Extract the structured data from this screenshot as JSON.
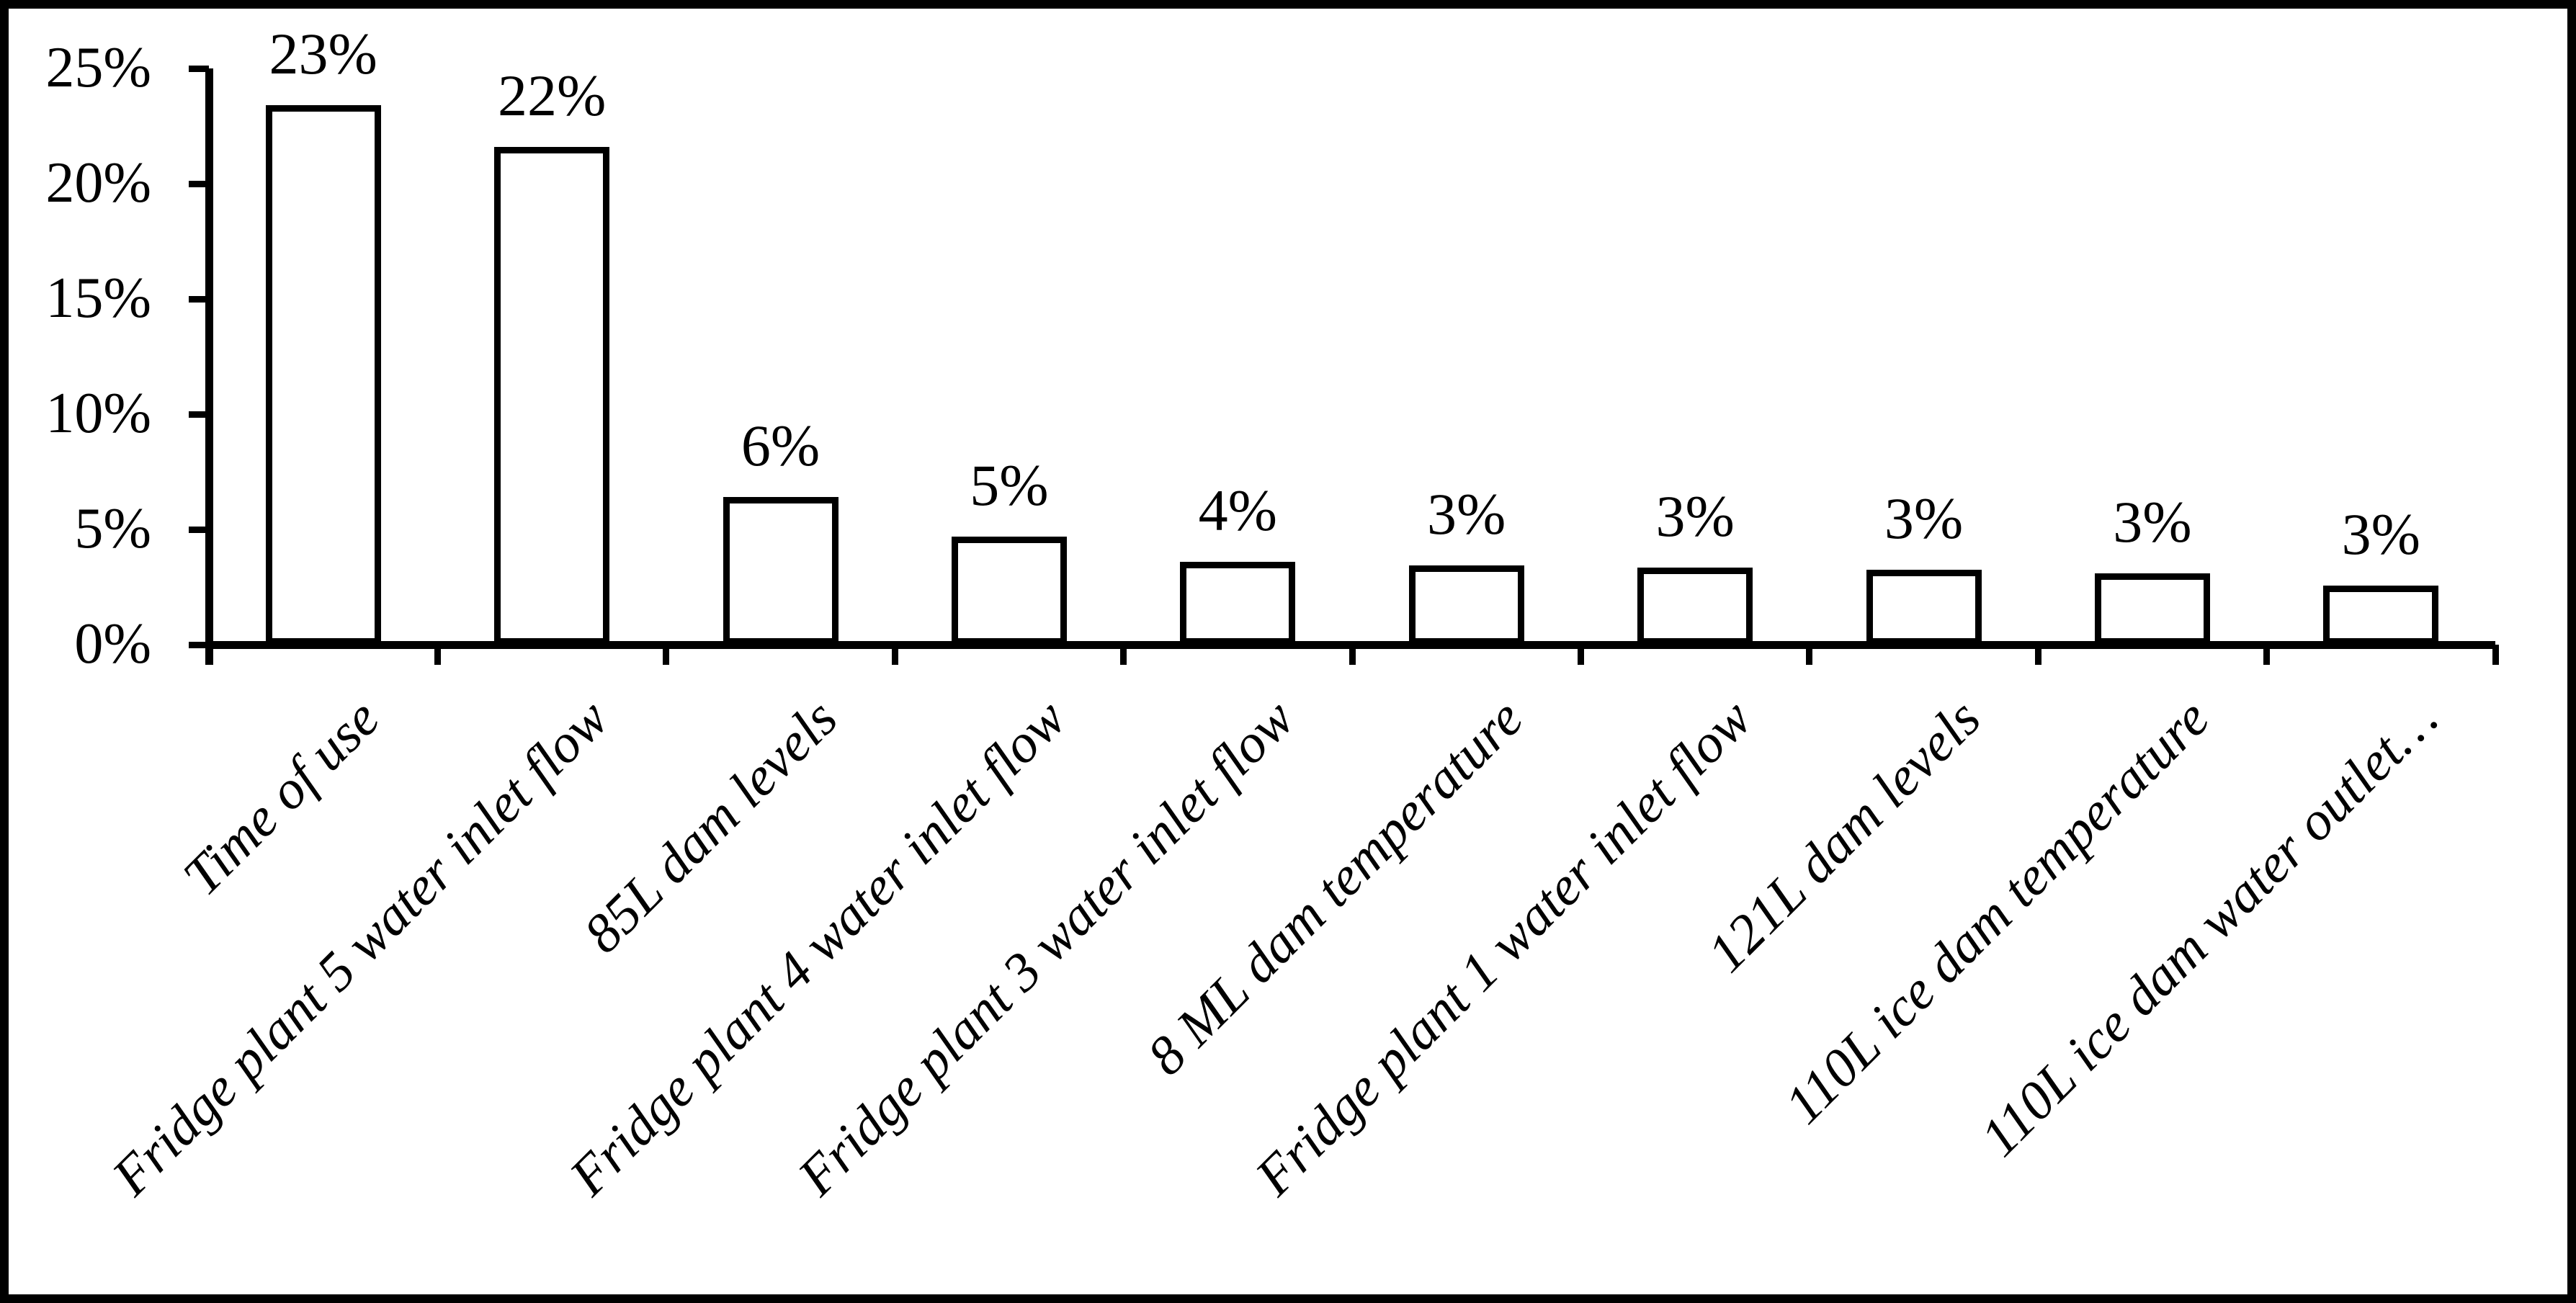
{
  "chart_data": {
    "type": "bar",
    "title": "",
    "xlabel": "",
    "ylabel": "",
    "grid": false,
    "legend": null,
    "background": "#ffffff",
    "ink": "#000000",
    "bar_fill": "#ffffff",
    "bar_stroke": "#000000",
    "categories": [
      "Time of use",
      "Fridge plant 5 water inlet flow",
      "85L dam levels",
      "Fridge plant 4 water inlet flow",
      "Fridge plant 3 water inlet flow",
      "8 ML dam temperature",
      "Fridge plant 1 water inlet flow",
      "121L dam levels",
      "110L ice dam temperature",
      "110L ice dam water outlet…"
    ],
    "values": [
      23.4,
      21.6,
      6.4,
      4.7,
      3.6,
      3.45,
      3.35,
      3.25,
      3.1,
      2.55
    ],
    "data_labels": [
      "23%",
      "22%",
      "6%",
      "5%",
      "4%",
      "3%",
      "3%",
      "3%",
      "3%",
      "3%"
    ],
    "y_axis": {
      "min": 0,
      "max": 25,
      "step": 5,
      "tick_labels": [
        "0%",
        "5%",
        "10%",
        "15%",
        "20%",
        "25%"
      ]
    }
  }
}
